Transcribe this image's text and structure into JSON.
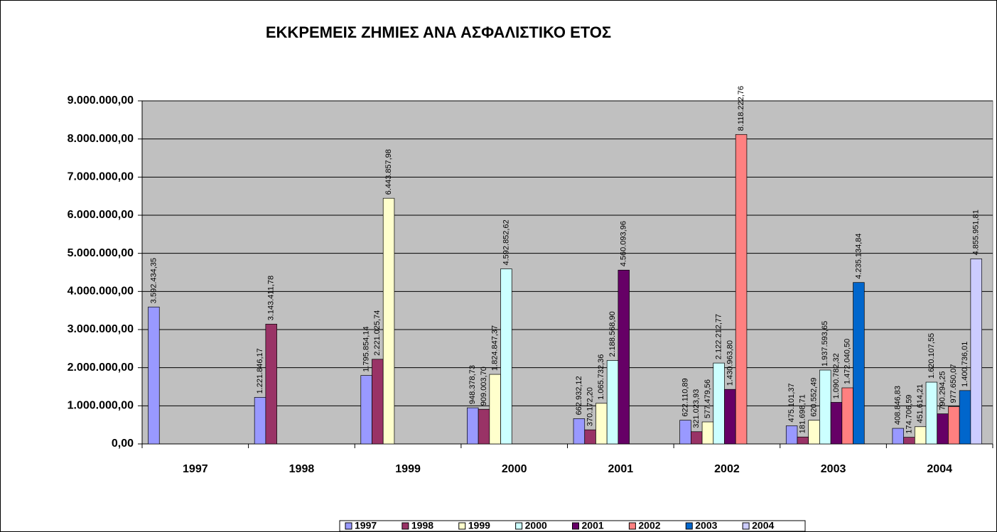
{
  "chart_data": {
    "type": "bar",
    "title": "ΕΚΚΡΕΜΕΙΣ ΖΗΜΙΕΣ ΑΝΑ ΑΣΦΑΛΙΣΤΙΚΟ ΕΤΟΣ",
    "categories": [
      "1997",
      "1998",
      "1999",
      "2000",
      "2001",
      "2002",
      "2003",
      "2004"
    ],
    "ylim": [
      0,
      9000000
    ],
    "yticks": [
      {
        "value": 0,
        "label": "0,00"
      },
      {
        "value": 1000000,
        "label": "1.000.000,00"
      },
      {
        "value": 2000000,
        "label": "2.000.000,00"
      },
      {
        "value": 3000000,
        "label": "3.000.000,00"
      },
      {
        "value": 4000000,
        "label": "4.000.000,00"
      },
      {
        "value": 5000000,
        "label": "5.000.000,00"
      },
      {
        "value": 6000000,
        "label": "6.000.000,00"
      },
      {
        "value": 7000000,
        "label": "7.000.000,00"
      },
      {
        "value": 8000000,
        "label": "8.000.000,00"
      },
      {
        "value": 9000000,
        "label": "9.000.000,00"
      }
    ],
    "grid": true,
    "legend": "bottom",
    "series": [
      {
        "name": "1997",
        "color": "#9999FF",
        "values": [
          3592434.35,
          1221846.17,
          1795854.14,
          948378.73,
          662932.12,
          622110.89,
          475101.37,
          408846.83
        ],
        "value_labels": [
          "3.592.434,35",
          "1.221.846,17",
          "1.795.854,14",
          "948.378,73",
          "662.932,12",
          "622.110,89",
          "475.101,37",
          "408.846,83"
        ]
      },
      {
        "name": "1998",
        "color": "#993366",
        "values": [
          null,
          3143411.78,
          2221025.74,
          909003.7,
          370172.2,
          321023.93,
          181698.71,
          174706.59
        ],
        "value_labels": [
          null,
          "3.143.411,78",
          "2.221.025,74",
          "909.003,70",
          "370.172,20",
          "321.023,93",
          "181.698,71",
          "174.706,59"
        ]
      },
      {
        "name": "1999",
        "color": "#FFFFCC",
        "values": [
          null,
          null,
          6443857.98,
          1824847.37,
          1065732.36,
          577479.56,
          620552.49,
          451614.21
        ],
        "value_labels": [
          null,
          null,
          "6.443.857,98",
          "1.824.847,37",
          "1.065.732,36",
          "577.479,56",
          "620.552,49",
          "451.614,21"
        ]
      },
      {
        "name": "2000",
        "color": "#CCFFFF",
        "values": [
          null,
          null,
          null,
          4592852.62,
          2188568.9,
          2122212.77,
          1937593.65,
          1620107.55
        ],
        "value_labels": [
          null,
          null,
          null,
          "4.592.852,62",
          "2.188.568,90",
          "2.122.212,77",
          "1.937.593,65",
          "1.620.107,55"
        ]
      },
      {
        "name": "2001",
        "color": "#660066",
        "values": [
          null,
          null,
          null,
          null,
          4560093.96,
          1430963.8,
          1090782.32,
          790294.25
        ],
        "value_labels": [
          null,
          null,
          null,
          null,
          "4.560.093,96",
          "1.430.963,80",
          "1.090.782,32",
          "790.294,25"
        ]
      },
      {
        "name": "2002",
        "color": "#FF8080",
        "values": [
          null,
          null,
          null,
          null,
          null,
          8118222.76,
          1472040.5,
          977650.07
        ],
        "value_labels": [
          null,
          null,
          null,
          null,
          null,
          "8.118.222,76",
          "1.472.040,50",
          "977.650,07"
        ]
      },
      {
        "name": "2003",
        "color": "#0066CC",
        "values": [
          null,
          null,
          null,
          null,
          null,
          null,
          4235134.84,
          1400736.01
        ],
        "value_labels": [
          null,
          null,
          null,
          null,
          null,
          null,
          "4.235.134,84",
          "1.400.736,01"
        ]
      },
      {
        "name": "2004",
        "color": "#CCCCFF",
        "values": [
          null,
          null,
          null,
          null,
          null,
          null,
          null,
          4855951.81
        ],
        "value_labels": [
          null,
          null,
          null,
          null,
          null,
          null,
          null,
          "4.855.951,81"
        ]
      }
    ]
  }
}
